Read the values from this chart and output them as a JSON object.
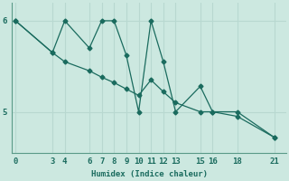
{
  "xlabel": "Humidex (Indice chaleur)",
  "bg_color": "#cce8e0",
  "line_color": "#1a6b5e",
  "grid_color": "#b8d8d0",
  "line1_x": [
    0,
    3,
    4,
    6,
    7,
    8,
    9,
    10,
    11,
    12,
    13,
    15,
    16,
    18,
    21
  ],
  "line1_y": [
    6.0,
    5.65,
    6.0,
    5.7,
    6.0,
    6.0,
    5.62,
    5.0,
    6.0,
    5.55,
    5.0,
    5.28,
    5.0,
    5.0,
    4.72
  ],
  "line2_x": [
    0,
    3,
    4,
    6,
    7,
    8,
    9,
    10,
    11,
    12,
    13,
    15,
    16,
    18,
    21
  ],
  "line2_y": [
    6.0,
    5.65,
    5.55,
    5.45,
    5.38,
    5.32,
    5.25,
    5.18,
    5.35,
    5.22,
    5.1,
    5.0,
    5.0,
    4.95,
    4.72
  ],
  "xticks": [
    0,
    3,
    4,
    6,
    7,
    8,
    9,
    10,
    11,
    12,
    13,
    15,
    16,
    18,
    21
  ],
  "yticks": [
    5,
    6
  ],
  "ylim": [
    4.55,
    6.2
  ],
  "xlim": [
    -0.3,
    22
  ]
}
